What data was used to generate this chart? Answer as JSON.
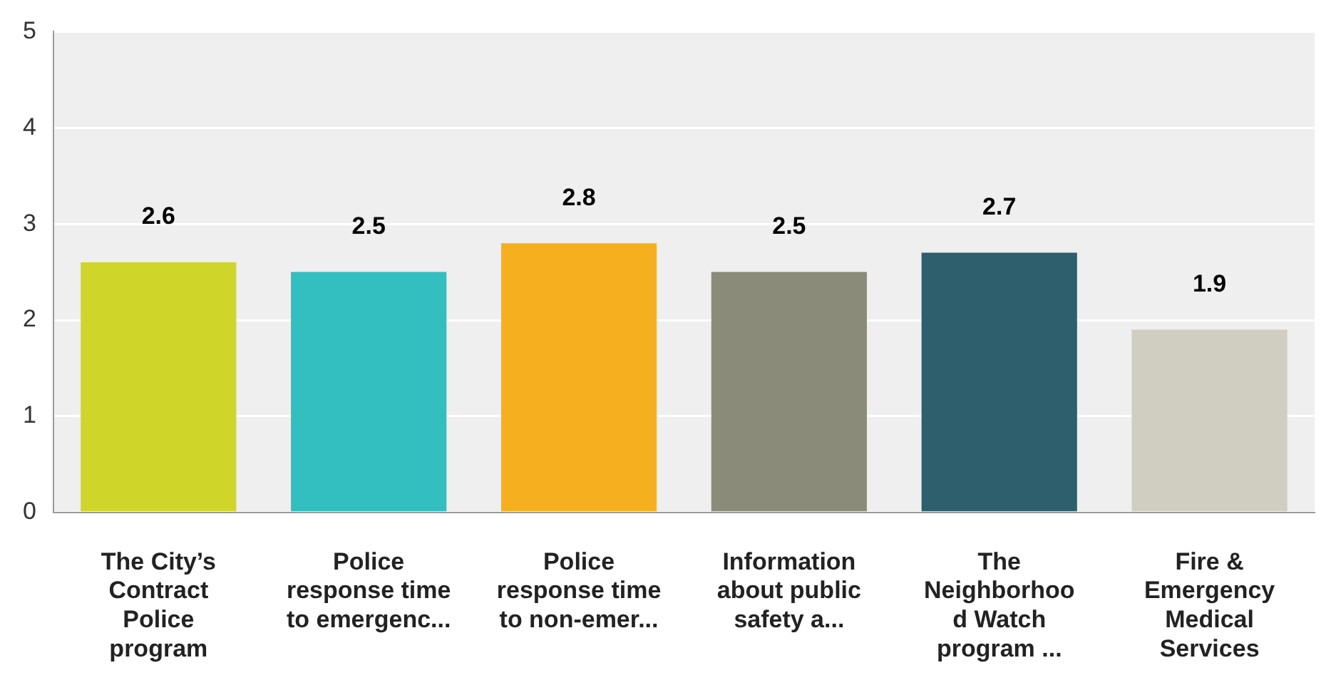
{
  "chart_data": {
    "type": "bar",
    "categories": [
      "The City’s Contract Police program",
      "Police response time to emergenc...",
      "Police response time to non-emer...",
      "Information about public safety a...",
      "The Neighborhood Watch program ...",
      "Fire & Emergency Medical Services"
    ],
    "values": [
      2.6,
      2.5,
      2.8,
      2.5,
      2.7,
      1.9
    ],
    "colors": [
      "#d0d52a",
      "#33bec0",
      "#f6b01f",
      "#8a8b79",
      "#2d5f6d",
      "#d0cec0"
    ],
    "ylim": [
      0,
      5
    ],
    "yticks": [
      0,
      1,
      2,
      3,
      4,
      5
    ],
    "grid": "y",
    "data_labels": true,
    "legend": false
  }
}
